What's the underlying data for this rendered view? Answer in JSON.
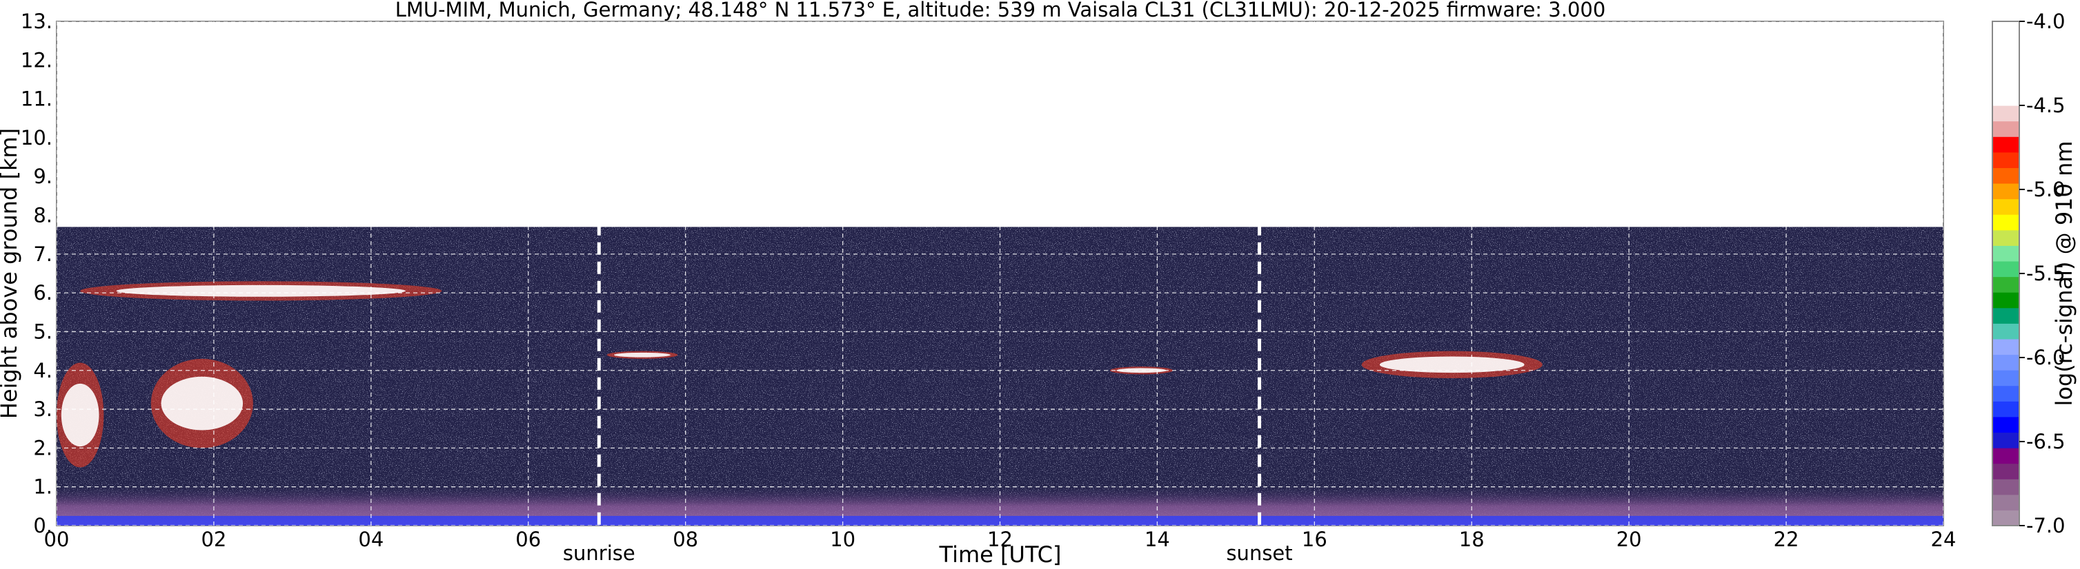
{
  "chart_data": {
    "type": "heatmap",
    "title": "LMU-MIM, Munich, Germany; 48.148° N 11.573° E, altitude: 539 m    Vaisala CL31 (CL31LMU): 20-12-2025    firmware: 3.000",
    "xlabel": "Time [UTC]",
    "ylabel": "Height above ground [km]",
    "xlim": [
      0,
      24
    ],
    "ylim": [
      0,
      13
    ],
    "x_ticks": [
      0,
      2,
      4,
      6,
      8,
      10,
      12,
      14,
      16,
      18,
      20,
      22,
      24
    ],
    "x_tick_labels": [
      "00",
      "02",
      "04",
      "06",
      "08",
      "10",
      "12",
      "14",
      "16",
      "18",
      "20",
      "22",
      "24"
    ],
    "y_ticks": [
      0,
      1,
      2,
      3,
      4,
      5,
      6,
      7,
      8,
      9,
      10,
      11,
      12,
      13
    ],
    "y_tick_labels": [
      "0.",
      "1.",
      "2.",
      "3.",
      "4.",
      "5.",
      "6.",
      "7.",
      "8.",
      "9.",
      "10.",
      "11.",
      "12.",
      "13."
    ],
    "grid": true,
    "signal_top_km": 7.7,
    "annotations": [
      {
        "text": "sunrise",
        "x": 6.9
      },
      {
        "text": "sunset",
        "x": 15.3
      }
    ],
    "colorbar": {
      "label": "log(rc-signal) @ 910 nm",
      "range": [
        -7.0,
        -4.0
      ],
      "ticks": [
        -4.0,
        -4.5,
        -5.0,
        -5.5,
        -6.0,
        -6.5,
        -7.0
      ],
      "tick_labels": [
        "-4.0",
        "-4.5",
        "-5.0",
        "-5.5",
        "-6.0",
        "-6.5",
        "-7.0"
      ],
      "colors": [
        "#a891a8",
        "#9a7a9a",
        "#8a5a8a",
        "#7a2a7a",
        "#800080",
        "#1a1ad0",
        "#0000ff",
        "#1e3cff",
        "#3c64ff",
        "#5a82ff",
        "#7896ff",
        "#96aaff",
        "#50c8b4",
        "#00a070",
        "#009600",
        "#32b432",
        "#46d278",
        "#7ae6a0",
        "#c8e650",
        "#ffff00",
        "#ffd200",
        "#ffa000",
        "#ff6400",
        "#ff3200",
        "#ff0000",
        "#e8a0a0",
        "#f2d2d2",
        "#ffffff"
      ]
    },
    "features": [
      {
        "kind": "cloud",
        "x": [
          0.3,
          4.9
        ],
        "y": [
          5.8,
          6.3
        ]
      },
      {
        "kind": "cloud",
        "x": [
          0.0,
          0.6
        ],
        "y": [
          1.5,
          4.2
        ]
      },
      {
        "kind": "cloud",
        "x": [
          1.2,
          2.5
        ],
        "y": [
          2.0,
          4.3
        ]
      },
      {
        "kind": "cloud",
        "x": [
          7.0,
          7.9
        ],
        "y": [
          4.3,
          4.5
        ]
      },
      {
        "kind": "cloud",
        "x": [
          13.4,
          14.2
        ],
        "y": [
          3.9,
          4.1
        ]
      },
      {
        "kind": "cloud",
        "x": [
          16.6,
          18.9
        ],
        "y": [
          3.8,
          4.5
        ]
      }
    ]
  }
}
